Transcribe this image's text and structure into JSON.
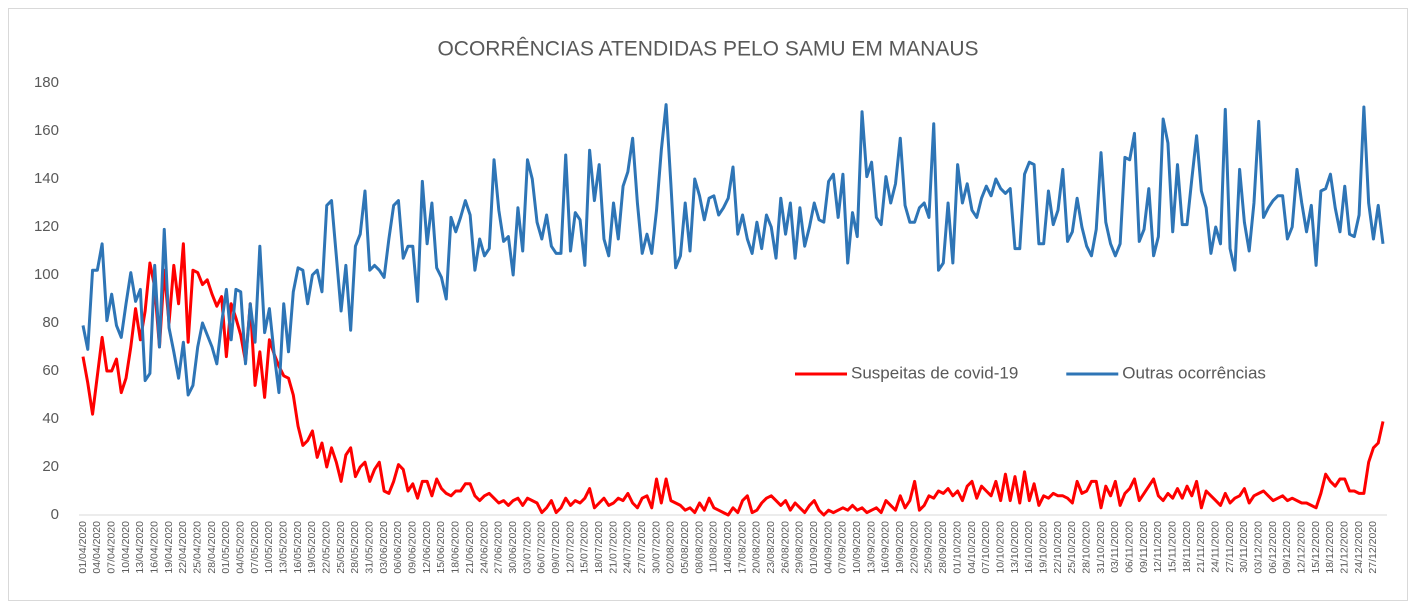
{
  "chart_data": {
    "type": "line",
    "title": "OCORRÊNCIAS ATENDIDAS PELO SAMU EM MANAUS",
    "legend": "right",
    "grid": false,
    "ylim": [
      0,
      180
    ],
    "yticks": [
      0,
      20,
      40,
      60,
      80,
      100,
      120,
      140,
      160,
      180
    ],
    "categories": [
      "01/04/2020",
      null,
      null,
      "04/04/2020",
      null,
      null,
      "07/04/2020",
      null,
      null,
      "10/04/2020",
      null,
      null,
      "13/04/2020",
      null,
      null,
      "16/04/2020",
      null,
      null,
      "19/04/2020",
      null,
      null,
      "22/04/2020",
      null,
      null,
      "25/04/2020",
      null,
      null,
      "28/04/2020",
      null,
      null,
      "01/05/2020",
      null,
      null,
      "04/05/2020",
      null,
      null,
      "07/05/2020",
      null,
      null,
      "10/05/2020",
      null,
      null,
      "13/05/2020",
      null,
      null,
      "16/05/2020",
      null,
      null,
      "19/05/2020",
      null,
      null,
      "22/05/2020",
      null,
      null,
      "25/05/2020",
      null,
      null,
      "28/05/2020",
      null,
      null,
      "31/05/2020",
      null,
      null,
      "03/06/2020",
      null,
      null,
      "06/06/2020",
      null,
      null,
      "09/06/2020",
      null,
      null,
      "12/06/2020",
      null,
      null,
      "15/06/2020",
      null,
      null,
      "18/06/2020",
      null,
      null,
      "21/06/2020",
      null,
      null,
      "24/06/2020",
      null,
      null,
      "27/06/2020",
      null,
      null,
      "30/06/2020",
      null,
      null,
      "03/07/2020",
      null,
      null,
      "06/07/2020",
      null,
      null,
      "09/07/2020",
      null,
      null,
      "12/07/2020",
      null,
      null,
      "15/07/2020",
      null,
      null,
      "18/07/2020",
      null,
      null,
      "21/07/2020",
      null,
      null,
      "24/07/2020",
      null,
      null,
      "27/07/2020",
      null,
      null,
      "30/07/2020",
      null,
      null,
      "02/08/2020",
      null,
      null,
      "05/08/2020",
      null,
      null,
      "08/08/2020",
      null,
      null,
      "11/08/2020",
      null,
      null,
      "14/08/2020",
      null,
      null,
      "17/08/2020",
      null,
      null,
      "20/08/2020",
      null,
      null,
      "23/08/2020",
      null,
      null,
      "26/08/2020",
      null,
      null,
      "29/08/2020",
      null,
      null,
      "01/09/2020",
      null,
      null,
      "04/09/2020",
      null,
      null,
      "07/09/2020",
      null,
      null,
      "10/09/2020",
      null,
      null,
      "13/09/2020",
      null,
      null,
      "16/09/2020",
      null,
      null,
      "19/09/2020",
      null,
      null,
      "22/09/2020",
      null,
      null,
      "25/09/2020",
      null,
      null,
      "28/09/2020",
      null,
      null,
      "01/10/2020",
      null,
      null,
      "04/10/2020",
      null,
      null,
      "07/10/2020",
      null,
      null,
      "10/10/2020",
      null,
      null,
      "13/10/2020",
      null,
      null,
      "16/10/2020",
      null,
      null,
      "19/10/2020",
      null,
      null,
      "22/10/2020",
      null,
      null,
      "25/10/2020",
      null,
      null,
      "28/10/2020",
      null,
      null,
      "31/10/2020",
      null,
      null,
      "03/11/2020",
      null,
      null,
      "06/11/2020",
      null,
      null,
      "09/11/2020",
      null,
      null,
      "12/11/2020",
      null,
      null,
      "15/11/2020",
      null,
      null,
      "18/11/2020",
      null,
      null,
      "21/11/2020",
      null,
      null,
      "24/11/2020",
      null,
      null,
      "27/11/2020",
      null,
      null,
      "30/11/2020",
      null,
      null,
      "03/12/2020",
      null,
      null,
      "06/12/2020",
      null,
      null,
      "09/12/2020",
      null,
      null,
      "12/12/2020",
      null,
      null,
      "15/12/2020",
      null,
      null,
      "18/12/2020",
      null,
      null,
      "21/12/2020",
      null,
      null,
      "24/12/2020",
      null,
      null,
      "27/12/2020",
      null,
      null
    ],
    "series": [
      {
        "name": "Suspeitas de covid-19",
        "color": "#ff0000",
        "values": [
          66,
          55,
          42,
          58,
          74,
          60,
          60,
          65,
          51,
          57,
          70,
          86,
          73,
          85,
          105,
          95,
          70,
          102,
          80,
          104,
          88,
          113,
          72,
          102,
          101,
          96,
          98,
          92,
          87,
          91,
          66,
          88,
          82,
          75,
          64,
          88,
          54,
          68,
          49,
          73,
          67,
          62,
          58,
          57,
          50,
          37,
          29,
          31,
          35,
          24,
          30,
          20,
          28,
          22,
          14,
          25,
          28,
          16,
          20,
          22,
          14,
          19,
          22,
          10,
          9,
          14,
          21,
          19,
          10,
          13,
          7,
          14,
          14,
          8,
          15,
          11,
          9,
          8,
          10,
          10,
          13,
          13,
          8,
          6,
          8,
          9,
          7,
          5,
          6,
          4,
          6,
          7,
          4,
          7,
          6,
          5,
          1,
          3,
          6,
          1,
          3,
          7,
          4,
          6,
          5,
          7,
          11,
          3,
          5,
          7,
          4,
          5,
          7,
          6,
          9,
          5,
          3,
          7,
          8,
          3,
          15,
          5,
          15,
          6,
          5,
          4,
          2,
          3,
          1,
          5,
          2,
          7,
          3,
          2,
          1,
          0,
          3,
          1,
          6,
          8,
          1,
          2,
          5,
          7,
          8,
          6,
          4,
          6,
          2,
          5,
          3,
          1,
          4,
          6,
          2,
          0,
          2,
          1,
          2,
          3,
          2,
          4,
          2,
          3,
          1,
          2,
          3,
          1,
          6,
          4,
          2,
          8,
          3,
          6,
          14,
          2,
          4,
          8,
          7,
          10,
          9,
          11,
          8,
          10,
          6,
          12,
          14,
          7,
          12,
          10,
          8,
          14,
          6,
          17,
          6,
          16,
          5,
          18,
          6,
          13,
          4,
          8,
          7,
          9,
          8,
          8,
          7,
          5,
          14,
          9,
          10,
          14,
          14,
          3,
          12,
          8,
          14,
          4,
          9,
          11,
          15,
          6,
          9,
          12,
          15,
          8,
          6,
          9,
          7,
          11,
          7,
          12,
          8,
          14,
          3,
          10,
          8,
          6,
          4,
          9,
          5,
          7,
          8,
          11,
          5,
          8,
          9,
          10,
          8,
          6,
          7,
          8,
          6,
          7,
          6,
          5,
          5,
          4,
          3,
          9,
          17,
          14,
          12,
          15,
          15,
          10,
          10,
          9,
          9,
          22,
          28,
          30,
          39
        ]
      },
      {
        "name": "Outras ocorrências",
        "color": "#2e75b6",
        "values": [
          79,
          69,
          102,
          102,
          113,
          81,
          92,
          79,
          74,
          88,
          101,
          89,
          94,
          56,
          59,
          104,
          70,
          119,
          78,
          68,
          57,
          72,
          50,
          54,
          70,
          80,
          75,
          70,
          63,
          80,
          94,
          73,
          94,
          93,
          63,
          88,
          72,
          112,
          76,
          86,
          67,
          51,
          88,
          68,
          93,
          103,
          102,
          88,
          100,
          102,
          93,
          129,
          131,
          108,
          85,
          104,
          77,
          112,
          117,
          135,
          102,
          104,
          102,
          99,
          115,
          129,
          131,
          107,
          112,
          112,
          89,
          139,
          113,
          130,
          103,
          99,
          90,
          124,
          118,
          124,
          131,
          125,
          102,
          115,
          108,
          111,
          148,
          127,
          114,
          116,
          100,
          128,
          110,
          148,
          140,
          122,
          115,
          125,
          112,
          109,
          109,
          150,
          110,
          126,
          123,
          104,
          152,
          131,
          146,
          115,
          108,
          130,
          115,
          137,
          143,
          157,
          130,
          109,
          117,
          109,
          127,
          152,
          171,
          138,
          103,
          108,
          130,
          110,
          140,
          133,
          123,
          132,
          133,
          125,
          128,
          132,
          145,
          117,
          125,
          115,
          109,
          122,
          111,
          125,
          120,
          107,
          132,
          117,
          130,
          107,
          128,
          112,
          120,
          130,
          123,
          122,
          139,
          142,
          124,
          142,
          105,
          126,
          116,
          168,
          141,
          147,
          124,
          121,
          141,
          130,
          138,
          157,
          129,
          122,
          122,
          128,
          130,
          124,
          163,
          102,
          105,
          130,
          105,
          146,
          130,
          138,
          127,
          124,
          132,
          137,
          133,
          140,
          136,
          134,
          136,
          111,
          111,
          142,
          147,
          146,
          113,
          113,
          135,
          121,
          127,
          144,
          114,
          118,
          132,
          120,
          112,
          108,
          119,
          151,
          122,
          113,
          108,
          113,
          149,
          148,
          159,
          114,
          119,
          136,
          108,
          116,
          165,
          155,
          118,
          146,
          121,
          121,
          140,
          158,
          135,
          128,
          109,
          120,
          113,
          169,
          111,
          102,
          144,
          122,
          110,
          130,
          164,
          124,
          128,
          131,
          133,
          133,
          115,
          120,
          144,
          130,
          118,
          129,
          104,
          135,
          136,
          142,
          128,
          118,
          137,
          117,
          116,
          125,
          170,
          130,
          115,
          129,
          113
        ]
      }
    ]
  }
}
